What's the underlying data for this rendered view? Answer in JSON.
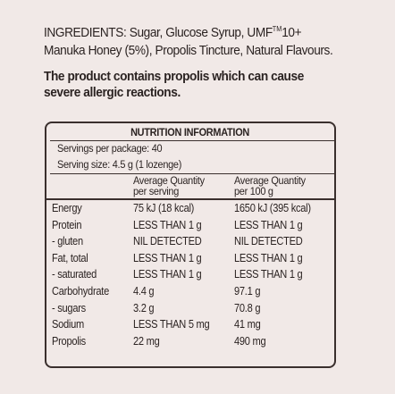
{
  "ingredients": {
    "heading": "INGREDIENTS",
    "line1_rest": ": Sugar, Glucose Syrup, UMF",
    "tm": "TM",
    "line1_end": "10+",
    "line2": "Manuka Honey (5%), Propolis Tincture, Natural Flavours."
  },
  "warning": {
    "line1": "The product contains propolis which can cause",
    "line2": "severe allergic reactions."
  },
  "nutrition": {
    "title": "NUTRITION INFORMATION",
    "servings_per_package": "Servings per package: 40",
    "serving_size": "Serving size: 4.5 g (1 lozenge)",
    "col2_head_1": "Average Quantity",
    "col2_head_2": "per serving",
    "col3_head_1": "Average Quantity",
    "col3_head_2": "per 100 g",
    "rows": [
      {
        "name": "Energy",
        "per_serving": "75 kJ (18 kcal)",
        "per_100g": "1650 kJ (395 kcal)"
      },
      {
        "name": "Protein",
        "per_serving": "LESS THAN 1 g",
        "per_100g": "LESS THAN 1 g"
      },
      {
        "name": " - gluten",
        "per_serving": "NIL DETECTED",
        "per_100g": "NIL DETECTED"
      },
      {
        "name": "Fat, total",
        "per_serving": "LESS THAN 1 g",
        "per_100g": "LESS THAN 1 g"
      },
      {
        "name": " - saturated",
        "per_serving": "LESS THAN 1 g",
        "per_100g": "LESS THAN 1 g"
      },
      {
        "name": "Carbohydrate",
        "per_serving": "4.4 g",
        "per_100g": "97.1 g"
      },
      {
        "name": " - sugars",
        "per_serving": "3.2 g",
        "per_100g": "70.8 g"
      },
      {
        "name": "Sodium",
        "per_serving": "LESS THAN 5 mg",
        "per_100g": "41 mg"
      },
      {
        "name": "Propolis",
        "per_serving": "22 mg",
        "per_100g": "490 mg"
      }
    ]
  }
}
